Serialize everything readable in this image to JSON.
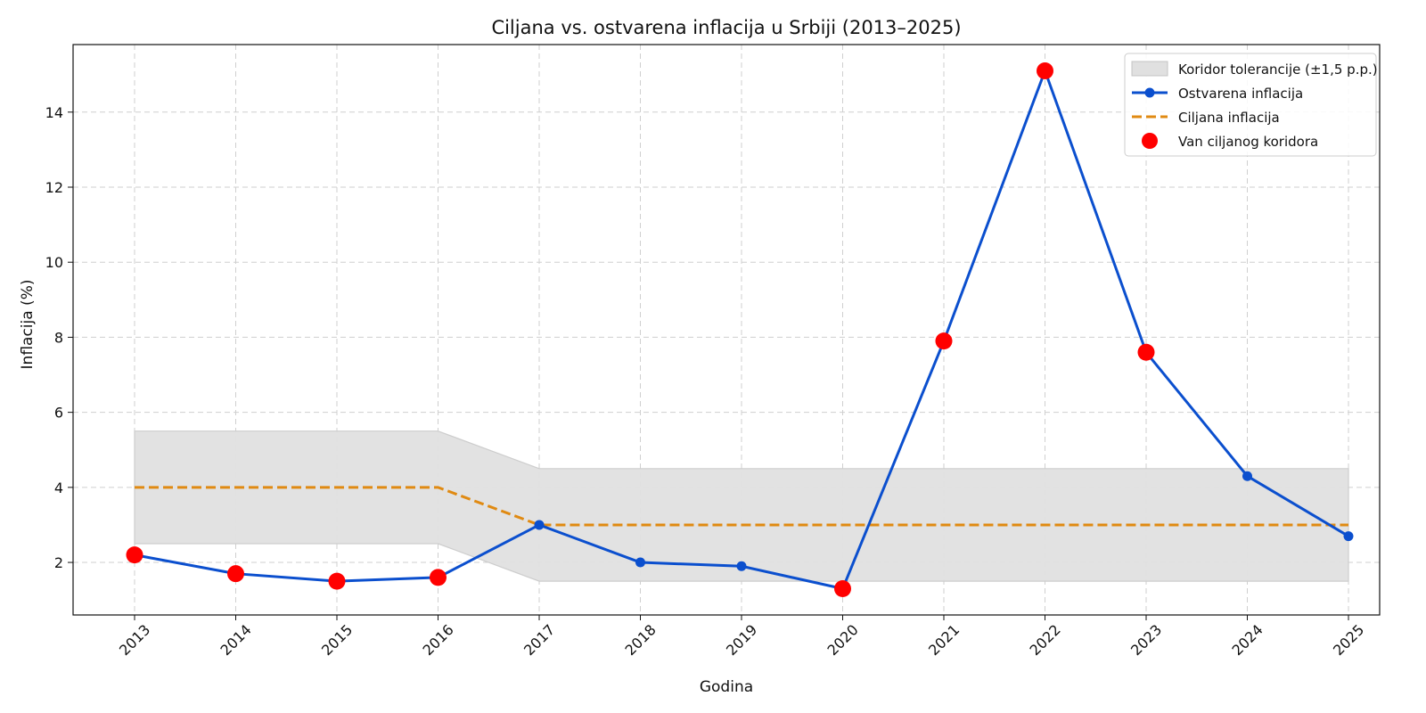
{
  "chart_data": {
    "type": "line",
    "title": "Ciljana vs. ostvarena inflacija u Srbiji (2013–2025)",
    "xlabel": "Godina",
    "ylabel": "Inflacija (%)",
    "x": [
      "2013",
      "2014",
      "2015",
      "2016",
      "2017",
      "2018",
      "2019",
      "2020",
      "2021",
      "2022",
      "2023",
      "2024",
      "2025"
    ],
    "ylim": [
      0.6,
      15.8
    ],
    "yticks": [
      2,
      4,
      6,
      8,
      10,
      12,
      14
    ],
    "grid": true,
    "legend_position": "top-right",
    "series": [
      {
        "name": "Ostvarena inflacija",
        "color": "#0b4fce",
        "values": [
          2.2,
          1.7,
          1.5,
          1.6,
          3.0,
          2.0,
          1.9,
          1.3,
          7.9,
          15.1,
          7.6,
          4.3,
          2.7
        ]
      },
      {
        "name": "Ciljana inflacija",
        "color": "#e08a12",
        "style": "dashed",
        "values": [
          4,
          4,
          4,
          4,
          3,
          3,
          3,
          3,
          3,
          3,
          3,
          3,
          3
        ]
      }
    ],
    "band": {
      "name": "Koridor tolerancije (±1,5 p.p.)",
      "color": "#e0e0e0",
      "lower": [
        2.5,
        2.5,
        2.5,
        2.5,
        1.5,
        1.5,
        1.5,
        1.5,
        1.5,
        1.5,
        1.5,
        1.5,
        1.5
      ],
      "upper": [
        5.5,
        5.5,
        5.5,
        5.5,
        4.5,
        4.5,
        4.5,
        4.5,
        4.5,
        4.5,
        4.5,
        4.5,
        4.5
      ]
    },
    "outside_markers": {
      "name": "Van ciljanog koridora",
      "color": "#ff0000",
      "x": [
        "2013",
        "2014",
        "2015",
        "2016",
        "2020",
        "2021",
        "2022",
        "2023"
      ],
      "values": [
        2.2,
        1.7,
        1.5,
        1.6,
        1.3,
        7.9,
        15.1,
        7.6
      ]
    }
  }
}
